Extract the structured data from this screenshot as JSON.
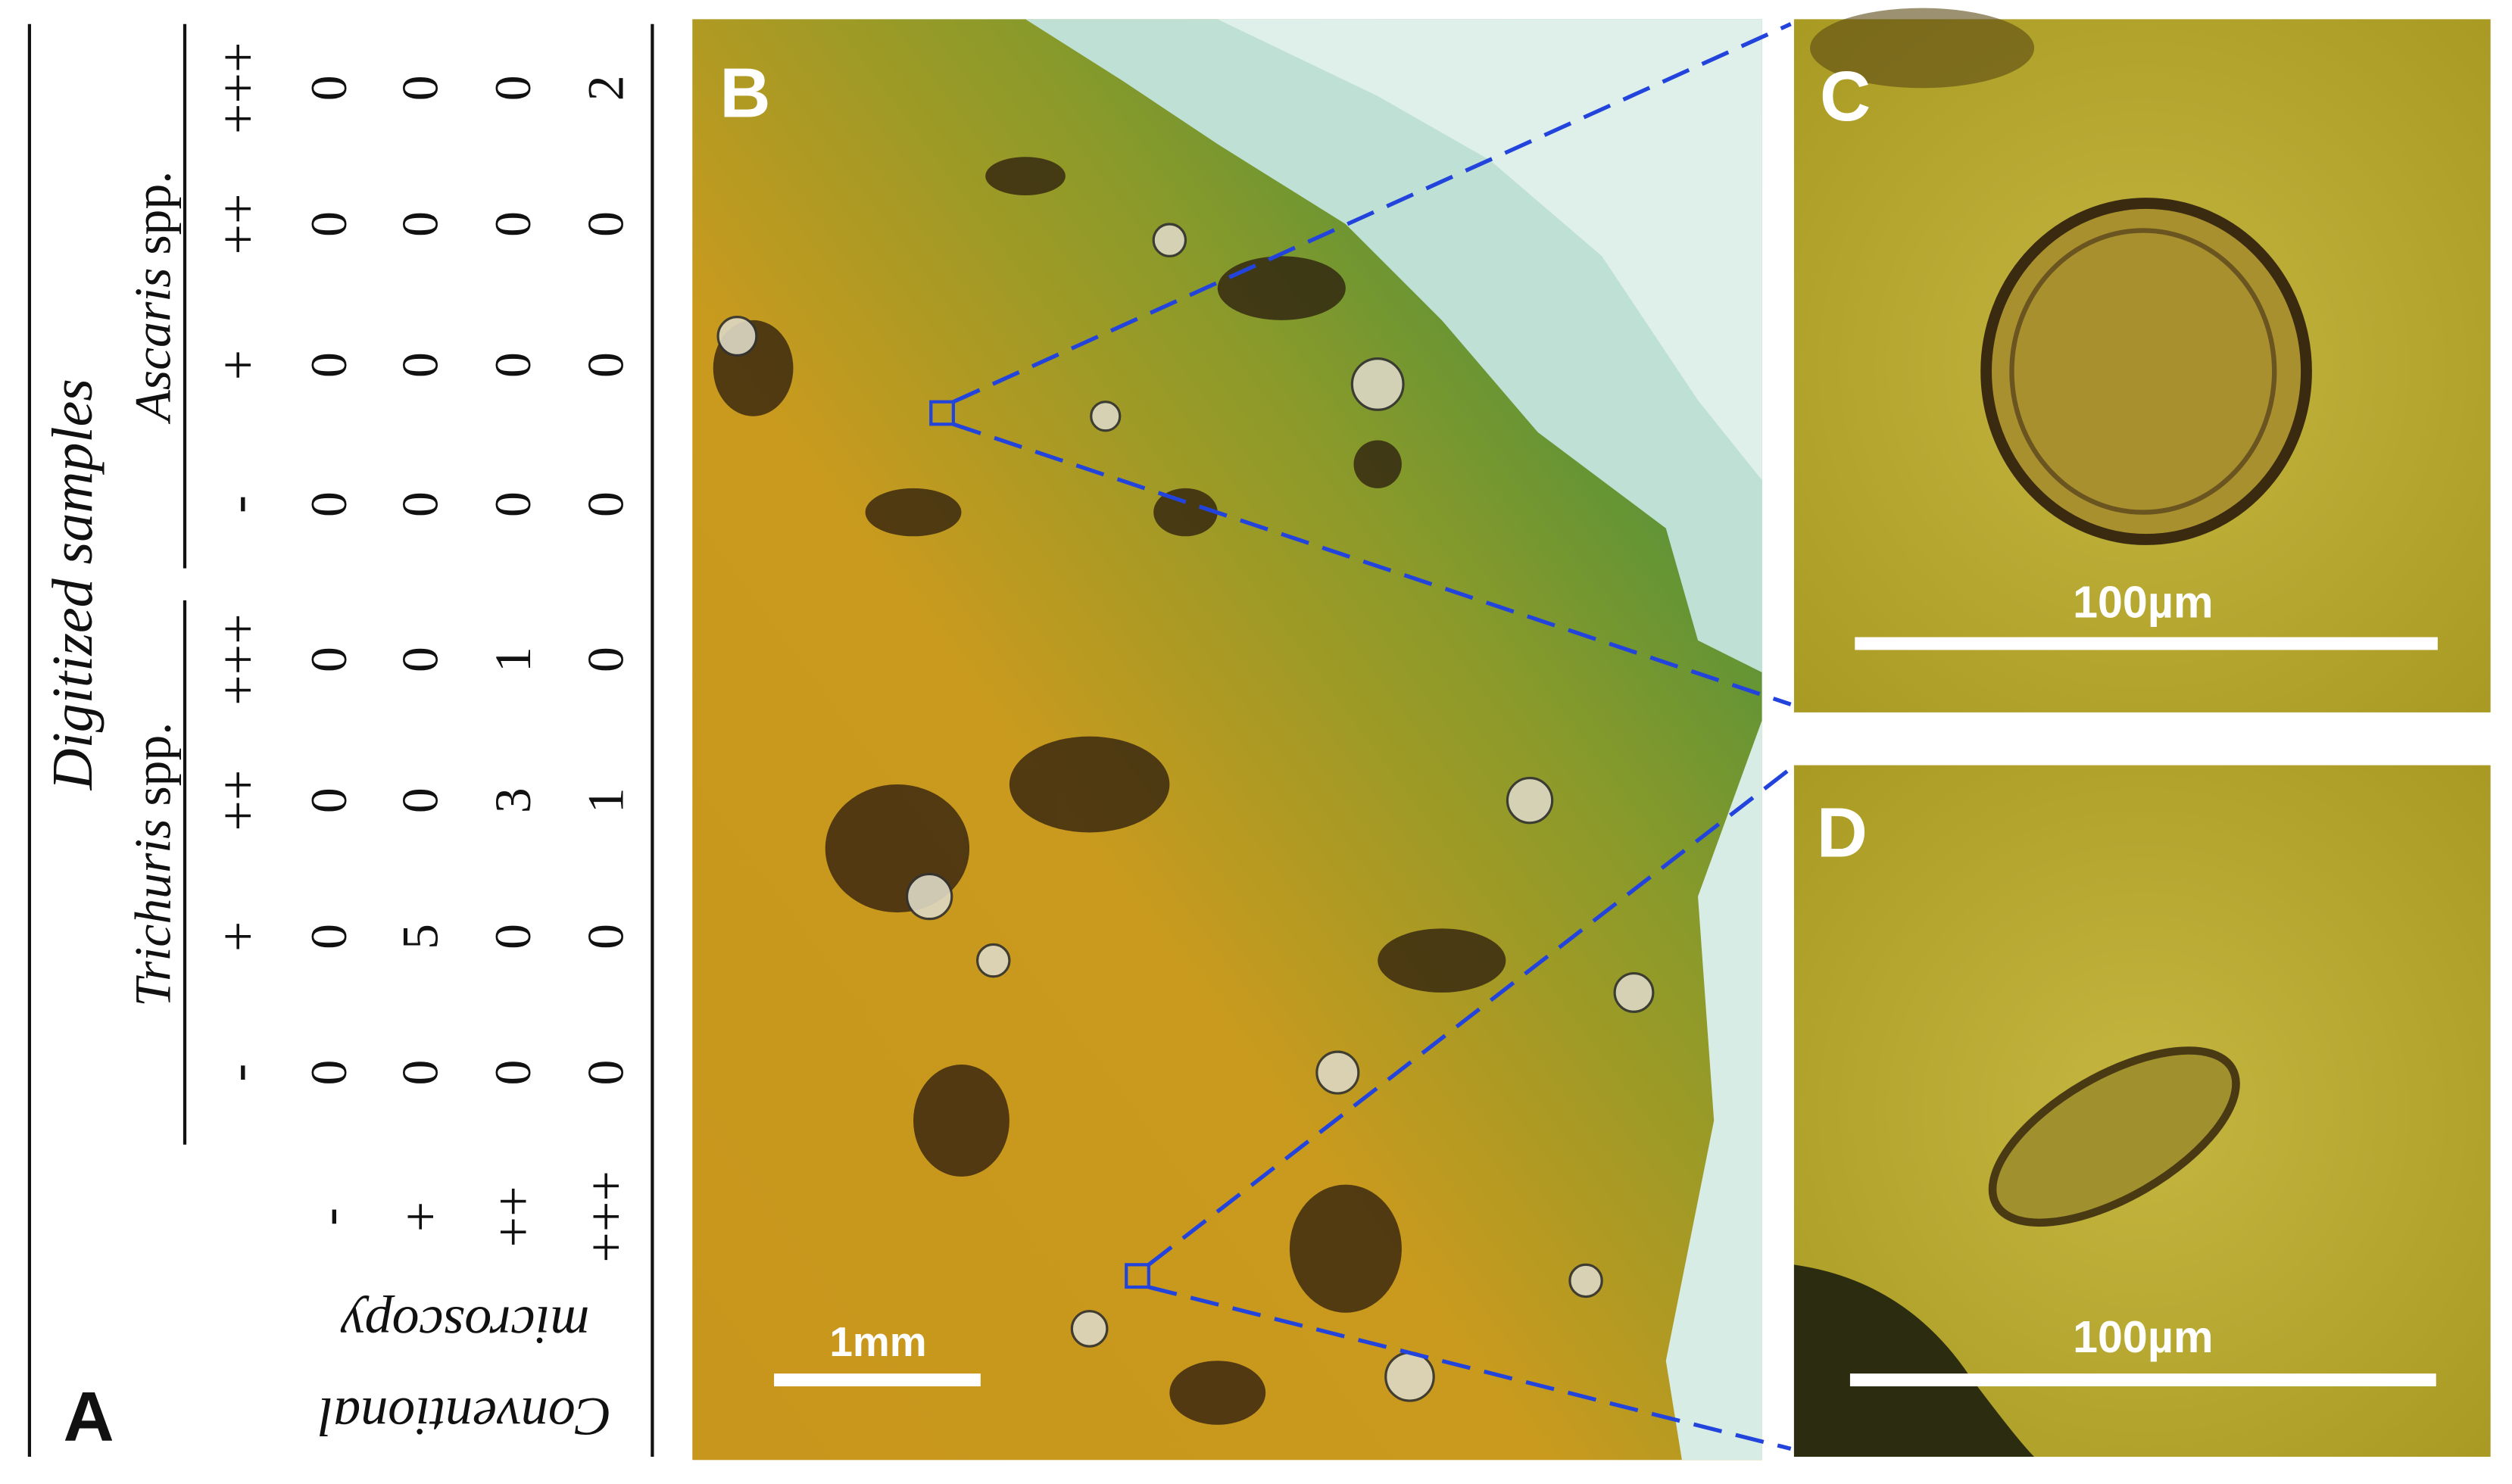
{
  "panel_labels": {
    "a": "A",
    "b": "B",
    "c": "C",
    "d": "D"
  },
  "table": {
    "title": "Digitized samples",
    "row_header": [
      "Conventional",
      "microscopy"
    ],
    "groups": [
      {
        "genus": "Trichuris",
        "suffix": "spp.",
        "levels": [
          "-",
          "+",
          "++",
          "+++"
        ]
      },
      {
        "genus": "Ascaris",
        "suffix": "spp.",
        "levels": [
          "-",
          "+",
          "++",
          "+++"
        ]
      }
    ],
    "row_levels": [
      "-",
      "+",
      "++",
      "+++"
    ],
    "rows": [
      [
        0,
        0,
        0,
        0,
        0,
        0,
        0,
        0
      ],
      [
        0,
        5,
        0,
        0,
        0,
        0,
        0,
        0
      ],
      [
        0,
        0,
        3,
        1,
        0,
        0,
        0,
        0
      ],
      [
        0,
        0,
        1,
        0,
        0,
        0,
        0,
        2
      ]
    ]
  },
  "scale_bars": {
    "b": "1mm",
    "c": "100µm",
    "d": "100µm"
  }
}
